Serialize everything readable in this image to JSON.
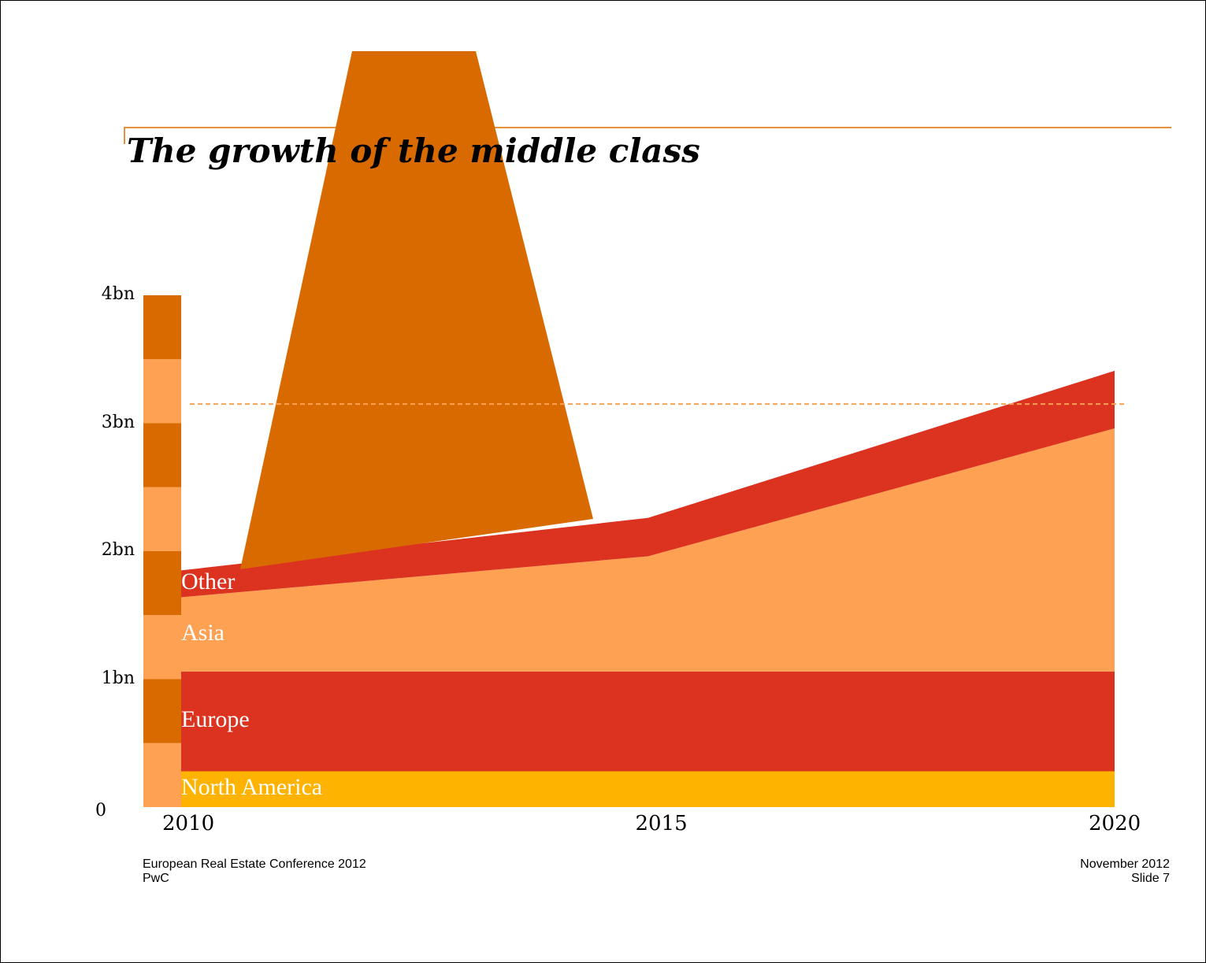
{
  "slide": {
    "title": "The growth of the middle class",
    "footer_left_line1": "European Real Estate Conference 2012",
    "footer_left_line2": "PwC",
    "footer_right_line1": "November 2012",
    "footer_right_line2": "Slide 7"
  },
  "colors": {
    "dark_orange": "#d96a00",
    "light_orange": "#fea153",
    "red": "#dc3220",
    "yellow": "#fdb300",
    "rule_orange": "#e8913a"
  },
  "chart_data": {
    "type": "area",
    "title": "The growth of the middle class",
    "x": [
      2010,
      2015,
      2020
    ],
    "x_tick_labels": [
      "2010",
      "2015",
      "2020"
    ],
    "y_tick_labels": [
      "0",
      "1bn",
      "2bn",
      "3bn",
      "4bn"
    ],
    "ylim": [
      0,
      4
    ],
    "y_unit": "bn",
    "stacked": true,
    "series": [
      {
        "name": "North America",
        "values": [
          0.28,
          0.28,
          0.28
        ],
        "color": "#fdb300"
      },
      {
        "name": "Europe",
        "values": [
          0.78,
          0.78,
          0.78
        ],
        "color": "#dc3220"
      },
      {
        "name": "Asia",
        "values": [
          0.58,
          0.9,
          1.9
        ],
        "color": "#fea153"
      },
      {
        "name": "Other",
        "values": [
          0.21,
          0.3,
          0.45
        ],
        "color": "#dc3220"
      }
    ],
    "reference_line": {
      "value": 3.15,
      "style": "dashed"
    },
    "overlay_shape": {
      "description": "large dark-orange trapezoid",
      "color": "#d96a00"
    },
    "grid": false,
    "legend": "inline-labels"
  }
}
